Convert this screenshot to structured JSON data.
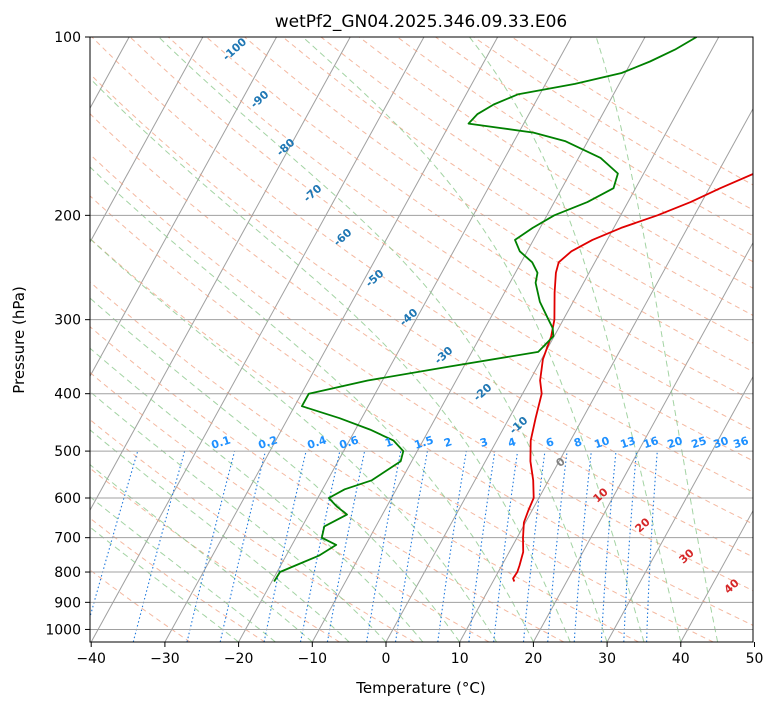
{
  "chart_data": {
    "type": "line",
    "title": "wetPf2_GN04.2025.346.09.33.E06",
    "xlabel": "Temperature (°C)",
    "ylabel": "Pressure (hPa)",
    "xlim": [
      -40,
      50
    ],
    "ylim": [
      1050,
      100
    ],
    "y_scale": "log",
    "grid": true,
    "x_ticks": [
      -40,
      -30,
      -20,
      -10,
      0,
      10,
      20,
      30,
      40,
      50
    ],
    "y_ticks": [
      100,
      200,
      300,
      400,
      500,
      600,
      700,
      800,
      900,
      1000
    ],
    "series": [
      {
        "color": "#e00000",
        "points": [
          [
            830,
            12.9
          ],
          [
            820,
            12.5
          ],
          [
            800,
            12.6
          ],
          [
            780,
            12.4
          ],
          [
            740,
            11.9
          ],
          [
            700,
            10.8
          ],
          [
            660,
            9.8
          ],
          [
            630,
            9.5
          ],
          [
            600,
            9.3
          ],
          [
            560,
            7.9
          ],
          [
            520,
            6.1
          ],
          [
            480,
            4.6
          ],
          [
            440,
            3.6
          ],
          [
            400,
            2.6
          ],
          [
            380,
            1.4
          ],
          [
            350,
            0.2
          ],
          [
            320,
            -0.4
          ],
          [
            300,
            -1.2
          ],
          [
            270,
            -3.2
          ],
          [
            250,
            -4.5
          ],
          [
            240,
            -4.9
          ],
          [
            230,
            -4.0
          ],
          [
            220,
            -2.0
          ],
          [
            210,
            1.0
          ],
          [
            200,
            5.0
          ],
          [
            190,
            8.5
          ],
          [
            180,
            11.5
          ],
          [
            170,
            15.0
          ],
          [
            160,
            19.0
          ],
          [
            150,
            21.2
          ],
          [
            140,
            22.0
          ],
          [
            130,
            22.2
          ],
          [
            120,
            22.1
          ],
          [
            115,
            22.8
          ],
          [
            110,
            24.5
          ],
          [
            105,
            25.7
          ],
          [
            100,
            26.0
          ]
        ]
      },
      {
        "color": "#008000",
        "points": [
          [
            830,
            -19.7
          ],
          [
            800,
            -19.6
          ],
          [
            780,
            -18.0
          ],
          [
            750,
            -15.5
          ],
          [
            720,
            -14.0
          ],
          [
            700,
            -16.5
          ],
          [
            670,
            -17.0
          ],
          [
            640,
            -14.8
          ],
          [
            620,
            -16.8
          ],
          [
            600,
            -18.5
          ],
          [
            580,
            -17.0
          ],
          [
            560,
            -14.0
          ],
          [
            520,
            -11.5
          ],
          [
            500,
            -11.9
          ],
          [
            480,
            -14.0
          ],
          [
            460,
            -18.0
          ],
          [
            440,
            -23.0
          ],
          [
            420,
            -29.0
          ],
          [
            400,
            -29.0
          ],
          [
            380,
            -22.0
          ],
          [
            360,
            -12.0
          ],
          [
            340,
            -1.0
          ],
          [
            320,
            -0.1
          ],
          [
            310,
            -0.8
          ],
          [
            300,
            -2.0
          ],
          [
            280,
            -4.5
          ],
          [
            260,
            -6.5
          ],
          [
            250,
            -7.0
          ],
          [
            240,
            -8.5
          ],
          [
            230,
            -11.0
          ],
          [
            220,
            -12.5
          ],
          [
            210,
            -11.0
          ],
          [
            200,
            -9.0
          ],
          [
            190,
            -5.5
          ],
          [
            180,
            -3.0
          ],
          [
            170,
            -3.5
          ],
          [
            160,
            -7.0
          ],
          [
            150,
            -13.0
          ],
          [
            145,
            -18.0
          ],
          [
            140,
            -27.5
          ],
          [
            135,
            -27.0
          ],
          [
            130,
            -25.5
          ],
          [
            125,
            -23.0
          ],
          [
            120,
            -16.0
          ],
          [
            115,
            -10.5
          ],
          [
            110,
            -7.5
          ],
          [
            105,
            -5.0
          ],
          [
            100,
            -3.0
          ]
        ]
      }
    ],
    "dry_adiabat_labels": [
      "-100",
      "-90",
      "-80",
      "-70",
      "-60",
      "-50",
      "-40",
      "-30",
      "-20",
      "-10"
    ],
    "mixing_ratio_labels": [
      "0.1",
      "0.2",
      "0.4",
      "0.6",
      "1",
      "1.5",
      "2",
      "3",
      "4",
      "6",
      "8",
      "10",
      "13",
      "16",
      "20",
      "25",
      "30",
      "36"
    ],
    "moist_adiabat_labels": [
      "0",
      "10",
      "20",
      "30",
      "40"
    ],
    "colors": {
      "isotherm": "#a0a0a0",
      "dry_adiabat": "#f0a080",
      "moist_adiabat": "#8cc88c",
      "mixing_ratio": "#1e78dc",
      "dry_label": "#1f77b4",
      "mixing_label": "#1e90ff",
      "moist_label_zero": "#808080",
      "moist_label": "#d62728"
    }
  }
}
